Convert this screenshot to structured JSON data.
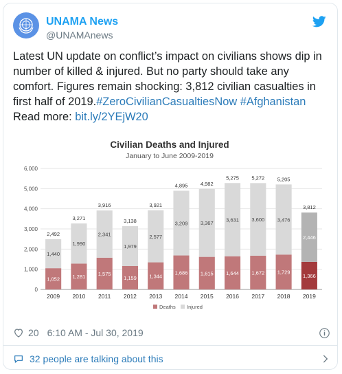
{
  "tweet": {
    "author_name": "UNAMA News",
    "author_handle": "@UNAMAnews",
    "text_plain_1": "Latest UN update on conflict’s impact on civilians shows dip in number of killed & injured. But no party should take any comfort. Figures remain shocking: 3,812 civilian casualties in first half of 2019.",
    "hashtag_1": "#ZeroCivilianCasualtiesNow",
    "hashtag_2": "#Afghanistan",
    "text_plain_2": "Read more:",
    "link": "bit.ly/2YEjW20",
    "likes": "20",
    "timestamp": "6:10 AM - Jul 30, 2019",
    "talking": "32 people are talking about this"
  },
  "chart_data": {
    "type": "bar",
    "title": "Civilian Deaths and Injured",
    "subtitle": "January to June 2009-2019",
    "categories": [
      "2009",
      "2010",
      "2011",
      "2012",
      "2013",
      "2014",
      "2015",
      "2016",
      "2017",
      "2018",
      "2019"
    ],
    "series": [
      {
        "name": "Deaths",
        "values": [
          1052,
          1281,
          1575,
          1159,
          1344,
          1686,
          1615,
          1644,
          1672,
          1729,
          1366
        ]
      },
      {
        "name": "Injured",
        "values": [
          1440,
          1990,
          2341,
          1979,
          2577,
          3209,
          3367,
          3631,
          3600,
          3476,
          2446
        ]
      }
    ],
    "totals": [
      2492,
      3271,
      3916,
      3138,
      3921,
      4895,
      4982,
      5275,
      5272,
      5205,
      3812
    ],
    "ylim": [
      0,
      6000
    ],
    "yticks": [
      "0",
      "1,000",
      "2,000",
      "3,000",
      "4,000",
      "5,000",
      "6,000"
    ],
    "ytick_values": [
      0,
      1000,
      2000,
      3000,
      4000,
      5000,
      6000
    ],
    "stacked": true,
    "grid": true,
    "legend_placement": "bottom-center",
    "colors": {
      "Deaths": "#c0787a",
      "Injured": "#d9d9d9",
      "Deaths_2019": "#a33a3c",
      "Injured_2019": "#b3b3b3"
    }
  }
}
